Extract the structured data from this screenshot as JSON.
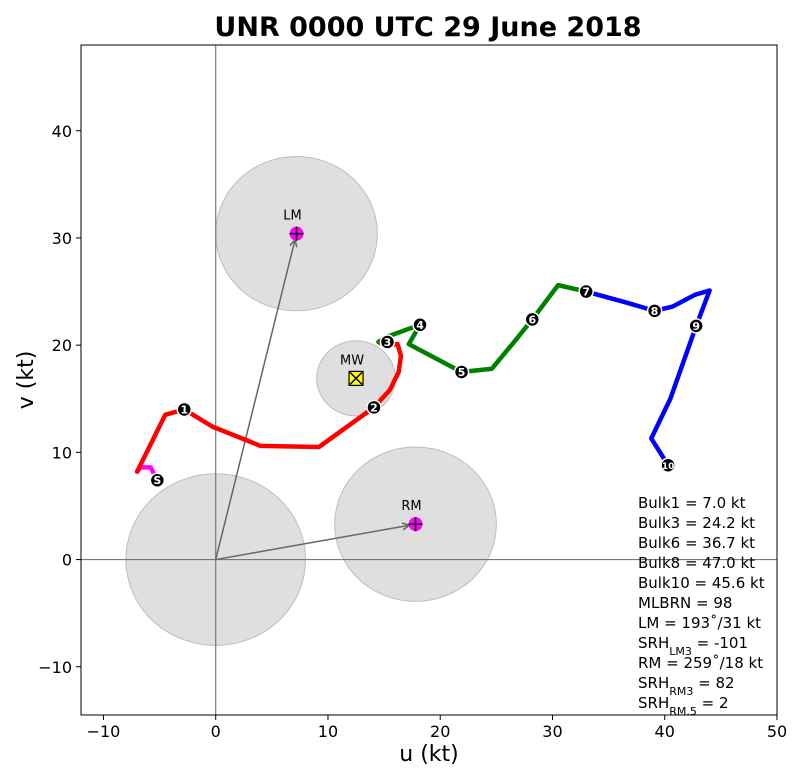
{
  "chart_data": {
    "type": "line",
    "title": "UNR 0000 UTC 29 June 2018",
    "xlabel": "u (kt)",
    "ylabel": "v (kt)",
    "xlim": [
      -12,
      50
    ],
    "ylim": [
      -14.5,
      48
    ],
    "xticks": [
      -10,
      0,
      10,
      20,
      30,
      40,
      50
    ],
    "yticks": [
      -10,
      0,
      10,
      20,
      30,
      40
    ],
    "xtick_labels": [
      "−10",
      "0",
      "10",
      "20",
      "30",
      "40",
      "50"
    ],
    "ytick_labels": [
      "−10",
      "0",
      "10",
      "20",
      "30",
      "40"
    ],
    "grid": false,
    "axis_lines": [
      0
    ],
    "series": [
      {
        "color": "#ff00ff",
        "points": [
          [
            -5.2,
            7.4
          ],
          [
            -5.8,
            8.6
          ],
          [
            -6.7,
            8.6
          ],
          [
            -7.0,
            8.2
          ]
        ]
      },
      {
        "color": "#ff0000",
        "points": [
          [
            -7.0,
            8.2
          ],
          [
            -4.5,
            13.5
          ],
          [
            -2.8,
            14.0
          ],
          [
            -0.3,
            12.4
          ],
          [
            4,
            10.6
          ],
          [
            9.2,
            10.5
          ],
          [
            14.1,
            14.2
          ],
          [
            15.5,
            15.8
          ],
          [
            16.3,
            17.5
          ],
          [
            16.5,
            19.0
          ],
          [
            16.2,
            20.1
          ],
          [
            15.3,
            20.0
          ],
          [
            15.0,
            20.0
          ],
          [
            14.5,
            20.3
          ]
        ]
      },
      {
        "color": "#008000",
        "points": [
          [
            14.5,
            20.3
          ],
          [
            15.3,
            20.8
          ],
          [
            18.2,
            21.9
          ],
          [
            17.2,
            20.1
          ],
          [
            21.9,
            17.5
          ],
          [
            24.6,
            17.8
          ],
          [
            26.5,
            20.2
          ],
          [
            28.2,
            22.4
          ],
          [
            30.5,
            25.6
          ],
          [
            33.0,
            25.0
          ]
        ]
      },
      {
        "color": "#0000ff",
        "points": [
          [
            33.0,
            25.0
          ],
          [
            36.5,
            24.0
          ],
          [
            39.1,
            23.2
          ],
          [
            40.7,
            23.6
          ],
          [
            42.7,
            24.7
          ],
          [
            44.0,
            25.1
          ],
          [
            42.8,
            21.8
          ],
          [
            40.5,
            15.0
          ],
          [
            38.8,
            11.3
          ],
          [
            40.3,
            8.8
          ]
        ]
      }
    ],
    "height_markers": [
      {
        "label": "S",
        "u": -5.2,
        "v": 7.4
      },
      {
        "label": "1",
        "u": -2.8,
        "v": 14.0
      },
      {
        "label": "2",
        "u": 14.1,
        "v": 14.2
      },
      {
        "label": "3",
        "u": 15.3,
        "v": 20.3
      },
      {
        "label": "4",
        "u": 18.2,
        "v": 21.9
      },
      {
        "label": "5",
        "u": 21.9,
        "v": 17.5
      },
      {
        "label": "6",
        "u": 28.2,
        "v": 22.4
      },
      {
        "label": "7",
        "u": 33.0,
        "v": 25.0
      },
      {
        "label": "8",
        "u": 39.1,
        "v": 23.2
      },
      {
        "label": "9",
        "u": 42.8,
        "v": 21.8
      },
      {
        "label": "10",
        "u": 40.3,
        "v": 8.8
      }
    ],
    "circles": [
      {
        "u": 0,
        "v": 0,
        "r": 8.0
      },
      {
        "u": 7.2,
        "v": 30.4,
        "r": 7.2
      },
      {
        "u": 12.5,
        "v": 16.9,
        "r": 3.5
      },
      {
        "u": 17.8,
        "v": 3.3,
        "r": 7.2
      }
    ],
    "motion_points": [
      {
        "label": "LM",
        "u": 7.2,
        "v": 30.4,
        "marker": "plus",
        "color": "#ff00ff"
      },
      {
        "label": "RM",
        "u": 17.8,
        "v": 3.3,
        "marker": "plus",
        "color": "#ff00ff"
      },
      {
        "label": "MW",
        "u": 12.5,
        "v": 16.9,
        "marker": "x",
        "color": "#ffff00"
      }
    ],
    "vectors": [
      {
        "u": 7.2,
        "v": 30.4
      },
      {
        "u": 17.8,
        "v": 3.3
      }
    ],
    "stats": [
      {
        "text": "Bulk1 = 7.0 kt"
      },
      {
        "text": "Bulk3 = 24.2 kt"
      },
      {
        "text": "Bulk6 = 36.7 kt"
      },
      {
        "text": "Bulk8 = 47.0 kt"
      },
      {
        "text": "Bulk10 = 45.6 kt"
      },
      {
        "text": "MLBRN = 98"
      },
      {
        "text": "LM = 193˚/31 kt"
      },
      {
        "base": "SRH",
        "sub": "LM3",
        "rest": " = -101"
      },
      {
        "text": "RM = 259˚/18 kt"
      },
      {
        "base": "SRH",
        "sub": "RM3",
        "rest": " = 82"
      },
      {
        "base": "SRH",
        "sub": "RM.5",
        "rest": " = 2"
      }
    ]
  }
}
